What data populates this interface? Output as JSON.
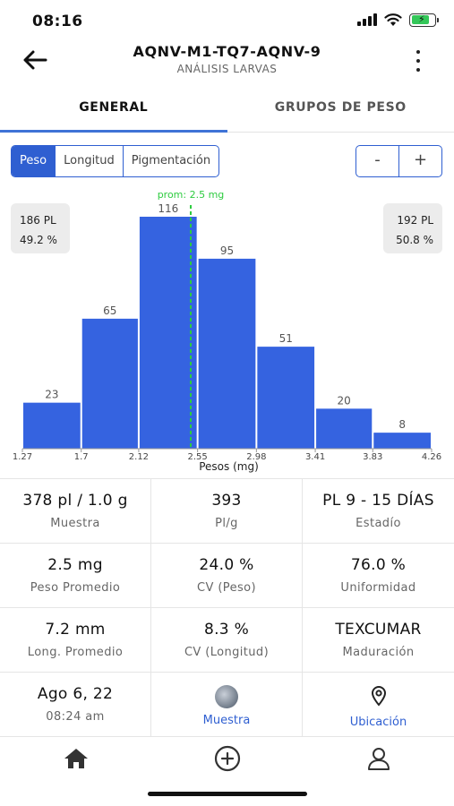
{
  "status": {
    "time": "08:16"
  },
  "header": {
    "title": "AQNV-M1-TQ7-AQNV-9",
    "subtitle": "ANÁLISIS LARVAS"
  },
  "tabs": [
    {
      "label": "GENERAL",
      "active": true
    },
    {
      "label": "GRUPOS DE PESO",
      "active": false
    }
  ],
  "segments": [
    {
      "label": "Peso",
      "active": true
    },
    {
      "label": "Longitud",
      "active": false
    },
    {
      "label": "Pigmentación",
      "active": false
    }
  ],
  "zoom": {
    "minus": "-",
    "plus": "+"
  },
  "summary_left": {
    "count": "186 PL",
    "percent": "49.2 %"
  },
  "summary_right": {
    "count": "192 PL",
    "percent": "50.8 %"
  },
  "chart_data": {
    "type": "bar",
    "bin_edges": [
      1.27,
      1.7,
      2.12,
      2.55,
      2.98,
      3.41,
      3.83,
      4.26
    ],
    "tick_labels": [
      "1.27",
      "1.7",
      "2.12",
      "2.55",
      "2.98",
      "3.41",
      "3.83",
      "4.26"
    ],
    "values": [
      23,
      65,
      116,
      95,
      51,
      20,
      8
    ],
    "xlabel": "Pesos (mg)",
    "ylim": [
      0,
      116
    ],
    "mean_label": "prom: 2.5 mg",
    "mean_value": 2.5,
    "bar_color": "#3563e0",
    "mean_color": "#2ecc40"
  },
  "stats": [
    [
      {
        "value": "378 pl / 1.0 g",
        "label": "Muestra"
      },
      {
        "value": "393",
        "label": "Pl/g"
      },
      {
        "value": "PL 9 - 15 DÍAS",
        "label": "Estadío"
      }
    ],
    [
      {
        "value": "2.5 mg",
        "label": "Peso Promedio"
      },
      {
        "value": "24.0 %",
        "label": "CV (Peso)"
      },
      {
        "value": "76.0 %",
        "label": "Uniformidad"
      }
    ],
    [
      {
        "value": "7.2 mm",
        "label": "Long. Promedio"
      },
      {
        "value": "8.3 %",
        "label": "CV (Longitud)"
      },
      {
        "value": "TEXCUMAR",
        "label": "Maduración"
      }
    ]
  ],
  "footer_row": {
    "date": "Ago 6, 22",
    "time": "08:24 am",
    "sample_link": "Muestra",
    "location_link": "Ubicación"
  },
  "icons": {
    "back": "arrow-left-icon",
    "more": "more-vertical-icon",
    "home": "home-icon",
    "add": "plus-circle-icon",
    "profile": "user-icon",
    "location": "map-pin-icon"
  },
  "colors": {
    "accent": "#2f5fd1",
    "tab_indicator": "#3f73d6"
  }
}
